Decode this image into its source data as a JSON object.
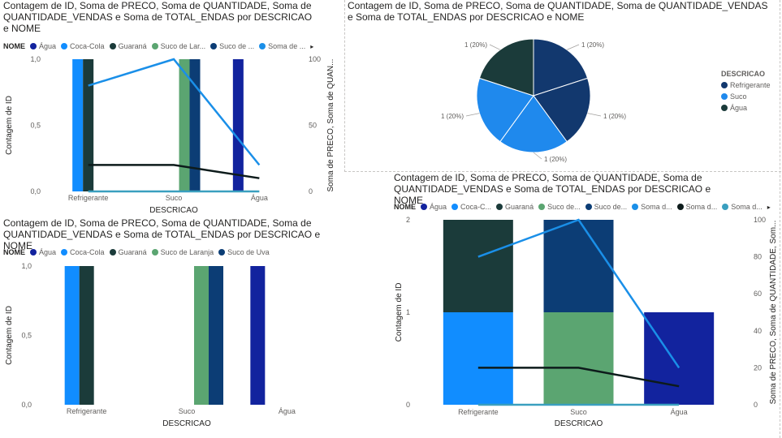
{
  "colors": {
    "Água": "#12239e",
    "Coca-Cola": "#118dff",
    "Guaraná": "#1b3b3a",
    "Suco de Laranja": "#5ba571",
    "Suco de Uva": "#0c3d75",
    "line_blue": "#1a8fe8",
    "line_dark": "#0d1b1b",
    "pie_Refrigerante": "#12386e",
    "pie_Suco": "#1f89ed",
    "pie_Agua": "#1b3b3a"
  },
  "visual1": {
    "title": "Contagem de ID, Soma de PRECO, Soma de QUANTIDADE, Soma de QUANTIDADE_VENDAS e Soma de TOTAL_ENDAS por DESCRICAO e NOME",
    "legend_title": "NOME",
    "legend": [
      "Água",
      "Coca-Cola",
      "Guaraná",
      "Suco de Lar...",
      "Suco de ...",
      "Soma de ..."
    ],
    "more": "▸"
  },
  "visual2": {
    "title": "Contagem de ID, Soma de PRECO, Soma de QUANTIDADE, Soma de QUANTIDADE_VENDAS e Soma de TOTAL_ENDAS por DESCRICAO e NOME",
    "legend_title": "DESCRICAO",
    "legend": [
      "Refrigerante",
      "Suco",
      "Água"
    ]
  },
  "visual3": {
    "title": "Contagem de ID, Soma de PRECO, Soma de QUANTIDADE, Soma de QUANTIDADE_VENDAS e Soma de TOTAL_ENDAS por DESCRICAO e NOME",
    "legend_title": "NOME",
    "legend": [
      "Água",
      "Coca-Cola",
      "Guaraná",
      "Suco de Laranja",
      "Suco de Uva"
    ]
  },
  "visual4": {
    "title": "Contagem de ID, Soma de PRECO, Soma de QUANTIDADE, Soma de QUANTIDADE_VENDAS e Soma de TOTAL_ENDAS por DESCRICAO e NOME",
    "legend_title": "NOME",
    "legend": [
      "Água",
      "Coca-C...",
      "Guaraná",
      "Suco de...",
      "Suco de...",
      "Soma d...",
      "Soma d...",
      "Soma d..."
    ],
    "more": "▸"
  },
  "chart_data": [
    {
      "type": "bar",
      "subtype": "clustered-column-line",
      "categories": [
        "Refrigerante",
        "Suco",
        "Água"
      ],
      "xlabel": "DESCRICAO",
      "ylabel": "Contagem de ID",
      "y2label": "Soma de PRECO, Soma de QUAN...",
      "ylim": [
        0,
        1
      ],
      "y2lim": [
        0,
        100
      ],
      "yticks": [
        "0,0",
        "0,5",
        "1,0"
      ],
      "y2ticks": [
        "0",
        "50",
        "100"
      ],
      "series": [
        {
          "name": "Água",
          "values": [
            0,
            0,
            1
          ]
        },
        {
          "name": "Coca-Cola",
          "values": [
            1,
            0,
            0
          ]
        },
        {
          "name": "Guaraná",
          "values": [
            1,
            0,
            0
          ]
        },
        {
          "name": "Suco de Laranja",
          "values": [
            0,
            1,
            0
          ]
        },
        {
          "name": "Suco de Uva",
          "values": [
            0,
            1,
            0
          ]
        }
      ],
      "lines": [
        {
          "name": "Soma de ...",
          "values": [
            80,
            100,
            20
          ],
          "color": "#1a8fe8"
        },
        {
          "name": "",
          "values": [
            20,
            20,
            10
          ],
          "color": "#0d1b1b"
        },
        {
          "name": "",
          "values": [
            0,
            0,
            0
          ],
          "color": "#3a9fbf"
        }
      ]
    },
    {
      "type": "pie",
      "categories": [
        "Refrigerante",
        "Refrigerante",
        "Suco",
        "Suco",
        "Água"
      ],
      "slice_colors": [
        "#12386e",
        "#12386e",
        "#1f89ed",
        "#1f89ed",
        "#1b3b3a"
      ],
      "values": [
        1,
        1,
        1,
        1,
        1
      ],
      "labels": [
        "1 (20%)",
        "1 (20%)",
        "1 (20%)",
        "1 (20%)",
        "1 (20%)"
      ],
      "legend_title": "DESCRICAO",
      "legend": [
        "Refrigerante",
        "Suco",
        "Água"
      ]
    },
    {
      "type": "bar",
      "subtype": "clustered-column",
      "categories": [
        "Refrigerante",
        "Suco",
        "Água"
      ],
      "xlabel": "DESCRICAO",
      "ylabel": "Contagem de ID",
      "ylim": [
        0,
        1
      ],
      "yticks": [
        "0,0",
        "0,5",
        "1,0"
      ],
      "series": [
        {
          "name": "Água",
          "values": [
            0,
            0,
            1
          ]
        },
        {
          "name": "Coca-Cola",
          "values": [
            1,
            0,
            0
          ]
        },
        {
          "name": "Guaraná",
          "values": [
            1,
            0,
            0
          ]
        },
        {
          "name": "Suco de Laranja",
          "values": [
            0,
            1,
            0
          ]
        },
        {
          "name": "Suco de Uva",
          "values": [
            0,
            1,
            0
          ]
        }
      ]
    },
    {
      "type": "bar",
      "subtype": "stacked-column-line",
      "categories": [
        "Refrigerante",
        "Suco",
        "Água"
      ],
      "xlabel": "DESCRICAO",
      "ylabel": "Contagem de ID",
      "y2label": "Soma de PRECO, Soma de QUANTIDADE, Som...",
      "ylim": [
        0,
        2
      ],
      "y2lim": [
        0,
        100
      ],
      "yticks": [
        "0",
        "1",
        "2"
      ],
      "y2ticks": [
        "0",
        "20",
        "40",
        "60",
        "80",
        "100"
      ],
      "stacks": [
        [
          {
            "name": "Coca-Cola",
            "value": 1
          },
          {
            "name": "Guaraná",
            "value": 1
          }
        ],
        [
          {
            "name": "Suco de Laranja",
            "value": 1
          },
          {
            "name": "Suco de Uva",
            "value": 1
          }
        ],
        [
          {
            "name": "Água",
            "value": 1
          }
        ]
      ],
      "lines": [
        {
          "name": "Soma d...",
          "values": [
            80,
            100,
            20
          ],
          "color": "#1a8fe8"
        },
        {
          "name": "Soma d...",
          "values": [
            20,
            20,
            10
          ],
          "color": "#0d1b1b"
        },
        {
          "name": "Soma d...",
          "values": [
            0,
            0,
            0
          ],
          "color": "#3a9fbf"
        }
      ]
    }
  ]
}
